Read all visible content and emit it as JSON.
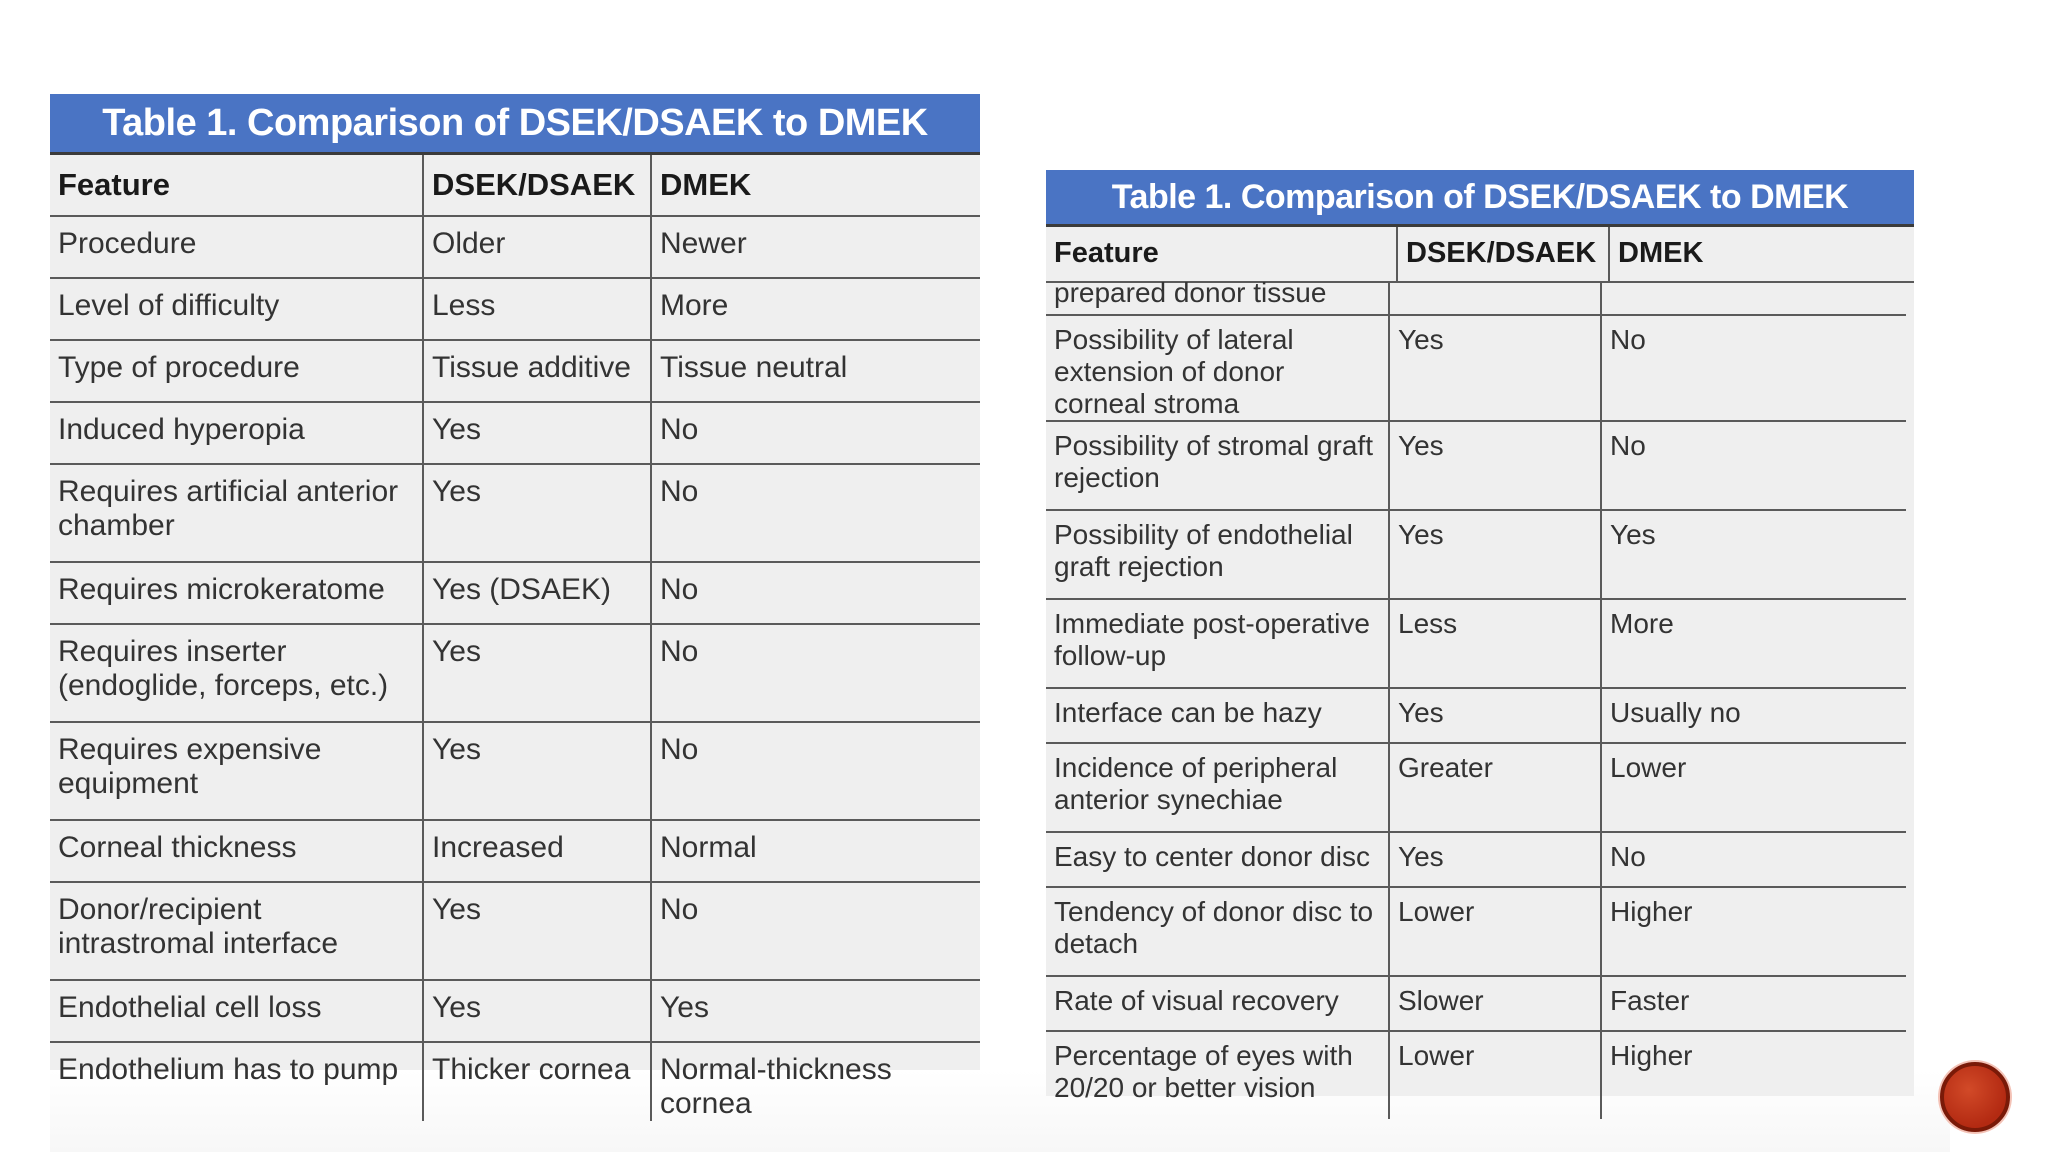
{
  "left_table": {
    "title": "Table 1. Comparison of DSEK/DSAEK to DMEK",
    "headers": [
      "Feature",
      "DSEK/DSAEK",
      "DMEK"
    ],
    "rows": [
      [
        "Procedure",
        "Older",
        "Newer"
      ],
      [
        "Level of difficulty",
        "Less",
        "More"
      ],
      [
        "Type of procedure",
        "Tissue additive",
        "Tissue neutral"
      ],
      [
        "Induced hyperopia",
        "Yes",
        "No"
      ],
      [
        "Requires artificial anterior chamber",
        "Yes",
        "No"
      ],
      [
        "Requires microkeratome",
        "Yes (DSAEK)",
        "No"
      ],
      [
        "Requires inserter (endoglide, forceps, etc.)",
        "Yes",
        "No"
      ],
      [
        "Requires expensive equipment",
        "Yes",
        "No"
      ],
      [
        "Corneal thickness",
        "Increased",
        "Normal"
      ],
      [
        "Donor/recipient intrastromal interface",
        "Yes",
        "No"
      ],
      [
        "Endothelial cell loss",
        "Yes",
        "Yes"
      ],
      [
        "Endothelium has to pump",
        "Thicker cornea",
        "Normal-thickness cornea"
      ]
    ]
  },
  "right_table": {
    "title": "Table 1. Comparison of DSEK/DSAEK to DMEK",
    "headers": [
      "Feature",
      "DSEK/DSAEK",
      "DMEK"
    ],
    "rows": [
      [
        "prepared donor tissue",
        "",
        ""
      ],
      [
        "Possibility of lateral extension of donor corneal stroma",
        "Yes",
        "No"
      ],
      [
        "Possibility of stromal graft rejection",
        "Yes",
        "No"
      ],
      [
        "Possibility of endothelial graft rejection",
        "Yes",
        "Yes"
      ],
      [
        "Immediate post-operative follow-up",
        "Less",
        "More"
      ],
      [
        "Interface can be hazy",
        "Yes",
        "Usually no"
      ],
      [
        "Incidence of peripheral anterior synechiae",
        "Greater",
        "Lower"
      ],
      [
        "Easy to center donor disc",
        "Yes",
        "No"
      ],
      [
        "Tendency of donor disc to detach",
        "Lower",
        "Higher"
      ],
      [
        "Rate of visual recovery",
        "Slower",
        "Faster"
      ],
      [
        "Percentage of eyes with 20/20 or better vision",
        "Lower",
        "Higher"
      ]
    ]
  },
  "nav": {
    "accent_color": "#c0381a",
    "icon": "circle-button-icon"
  }
}
